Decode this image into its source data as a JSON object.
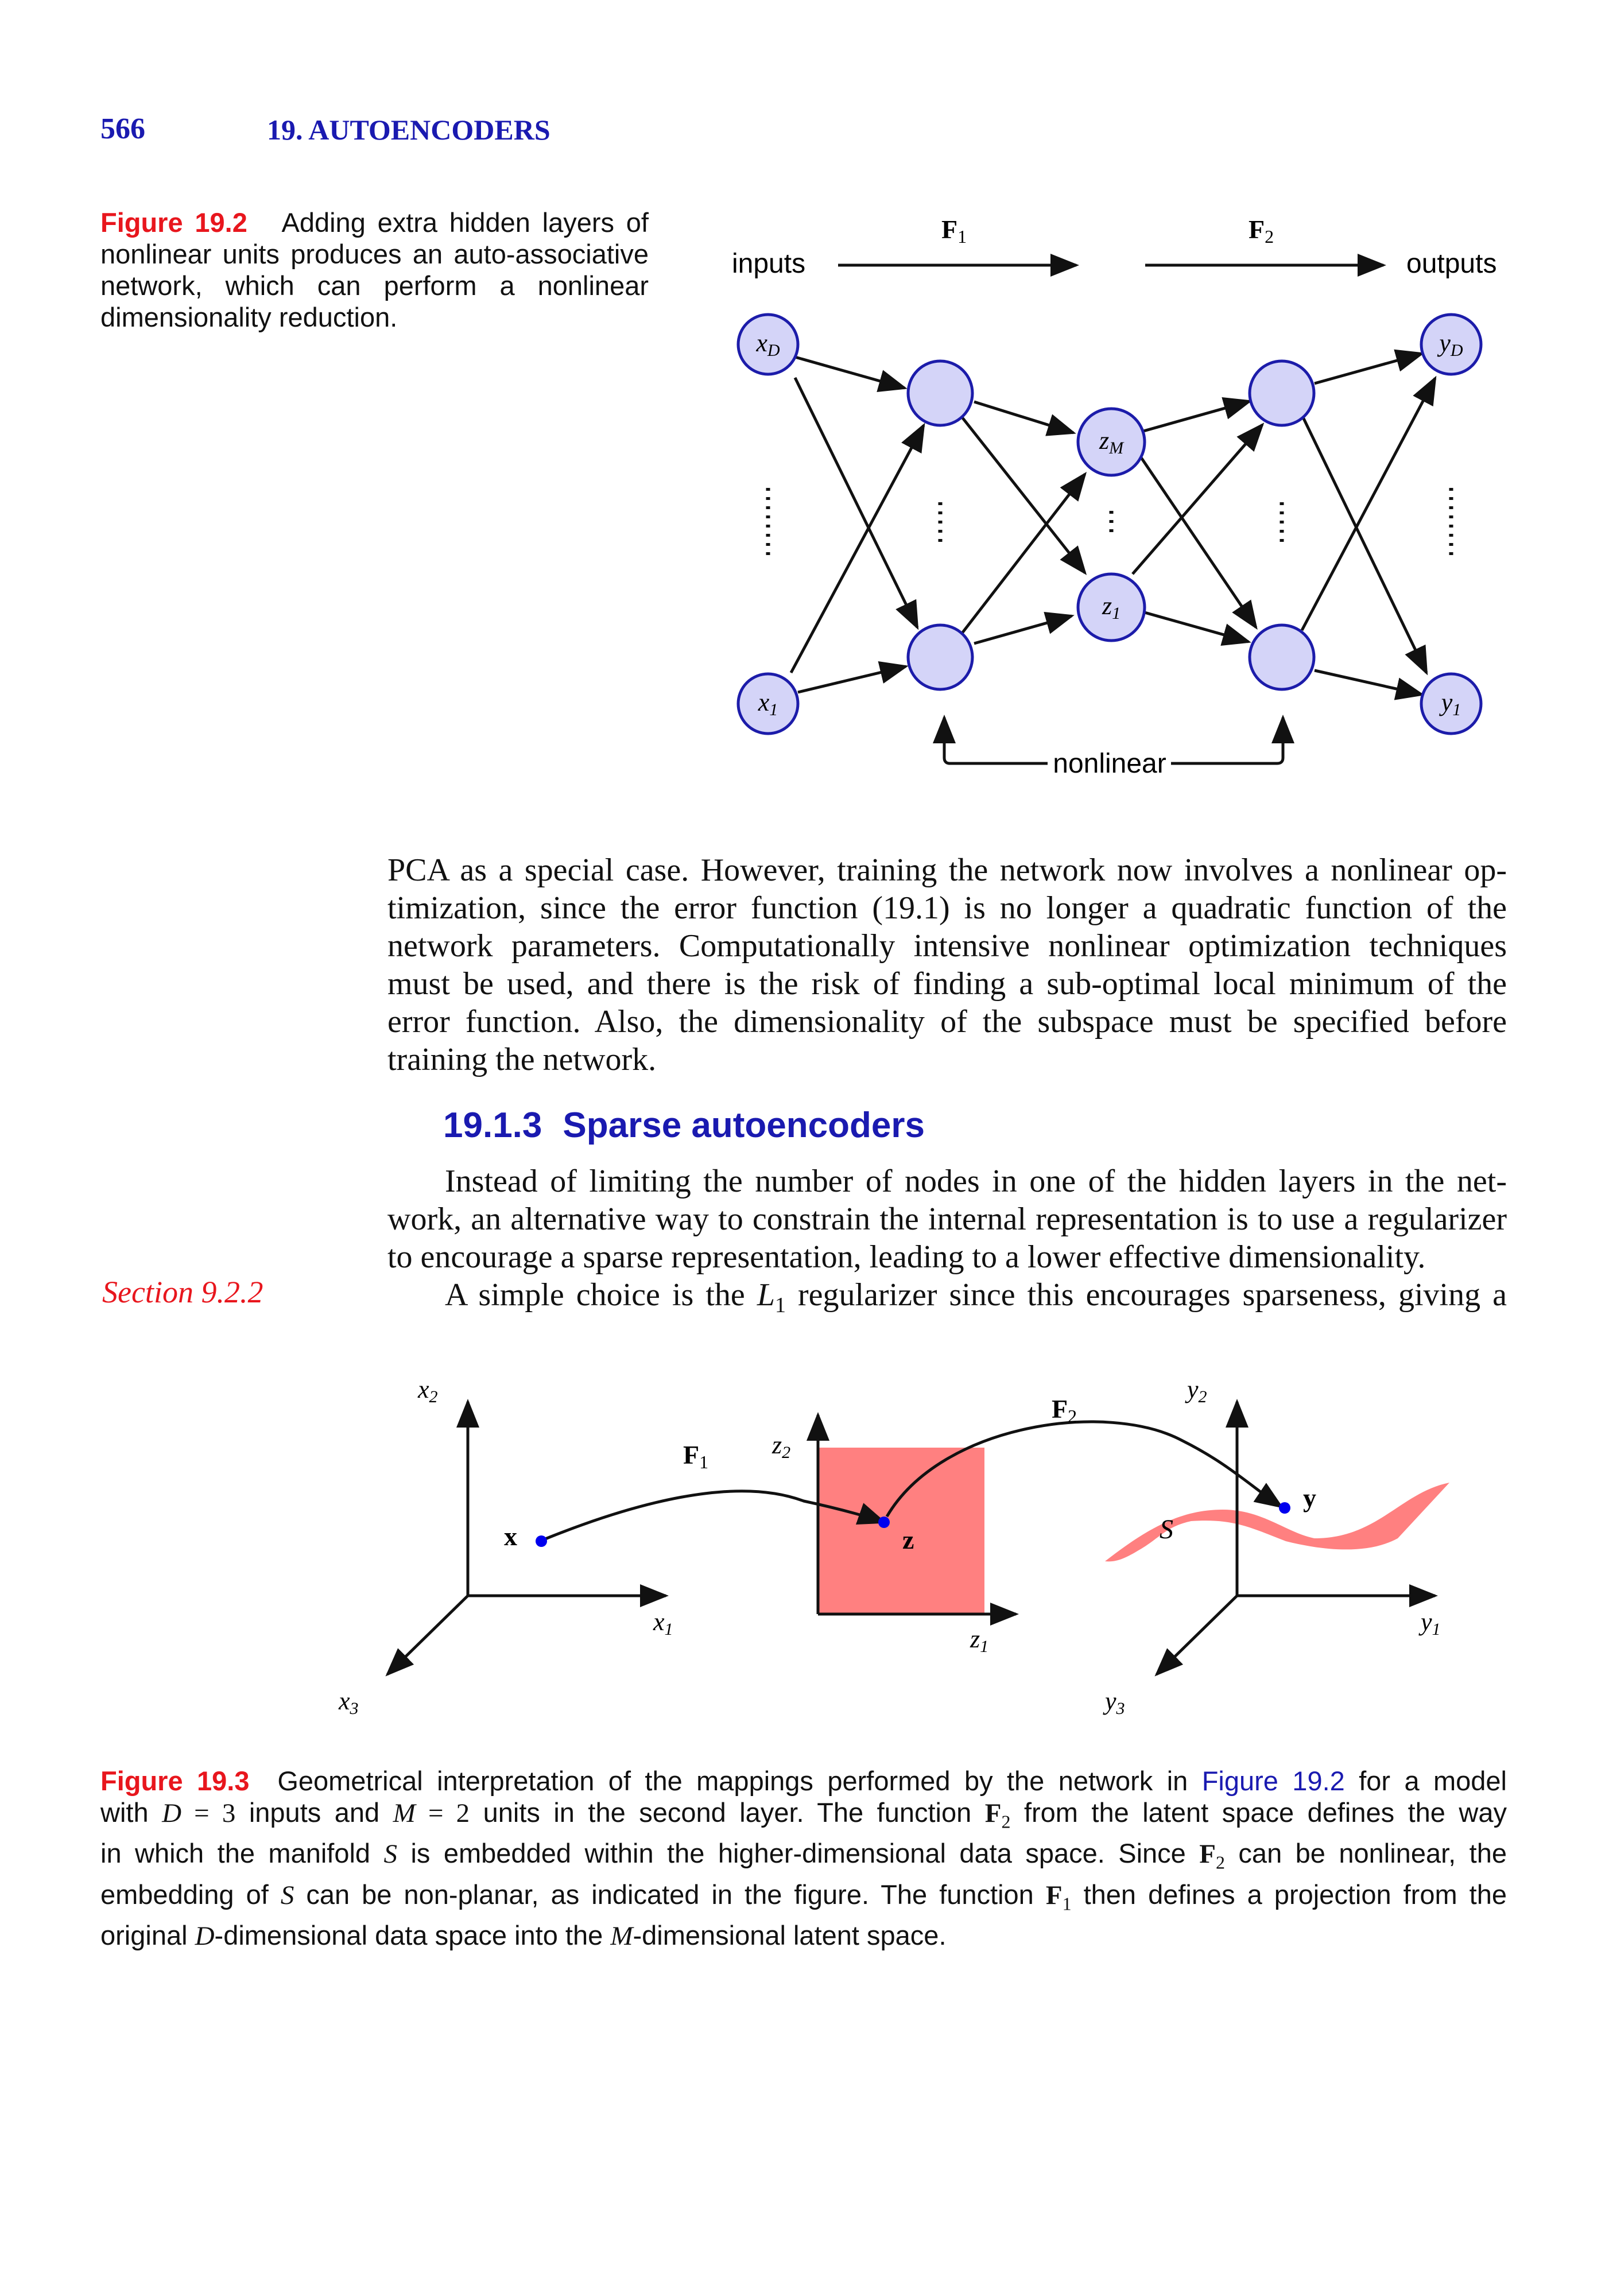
{
  "header": {
    "page_number": "566",
    "chapter_title": "19. AUTOENCODERS"
  },
  "figure_19_2": {
    "label": "Figure 19.2",
    "caption": "Adding extra hidden layers of nonlinear units produces an auto-associative network, which can perform a nonlinear dimensionality reduction.",
    "inputs_label": "inputs",
    "outputs_label": "outputs",
    "f1_label": "F",
    "f1_sub": "1",
    "f2_label": "F",
    "f2_sub": "2",
    "nonlinear_label": "nonlinear",
    "nodes": {
      "xD": "x",
      "xD_sub": "D",
      "x1": "x",
      "x1_sub": "1",
      "zM": "z",
      "zM_sub": "M",
      "z1": "z",
      "z1_sub": "1",
      "yD": "y",
      "yD_sub": "D",
      "y1": "y",
      "y1_sub": "1"
    },
    "colors": {
      "node_fill": "#d4d4f8",
      "node_stroke": "#1c1caa"
    }
  },
  "body": {
    "para1_l1": "PCA as a special case. However, training the network now involves a nonlinear op-",
    "para1_l2": "timization, since the error function (19.1) is no longer a quadratic function of the",
    "para1_l3": "network parameters. Computationally intensive nonlinear optimization techniques",
    "para1_l4": "must be used, and there is the risk of finding a sub-optimal local minimum of the",
    "para1_l5": "error function. Also, the dimensionality of the subspace must be specified before",
    "para1_l6": "training the network.",
    "section_number": "19.1.3",
    "section_title": "Sparse autoencoders",
    "para2_l1": "Instead of limiting the number of nodes in one of the hidden layers in the net-",
    "para2_l2": "work, an alternative way to constrain the internal representation is to use a regularizer",
    "para2_l3": "to encourage a sparse representation, leading to a lower effective dimensionality.",
    "para3_a": "A simple choice is the ",
    "para3_L": "L",
    "para3_sub": "1",
    "para3_b": " regularizer since this encourages sparseness, giving a",
    "sidenote": "Section 9.2.2"
  },
  "figure_19_3": {
    "label": "Figure 19.3",
    "axes": {
      "x1": "x",
      "x1_sub": "1",
      "x2": "x",
      "x2_sub": "2",
      "x3": "x",
      "x3_sub": "3",
      "z1": "z",
      "z1_sub": "1",
      "z2": "z",
      "z2_sub": "2",
      "y1": "y",
      "y1_sub": "1",
      "y2": "y",
      "y2_sub": "2",
      "y3": "y",
      "y3_sub": "3"
    },
    "point_x": "x",
    "point_z": "z",
    "point_y": "y",
    "manifold_label": "S",
    "f1": "F",
    "f1_sub": "1",
    "f2": "F",
    "f2_sub": "2",
    "caption_l1_a": "Geometrical interpretation of the mappings performed by the network in ",
    "caption_l1_link": "Figure 19.2",
    "caption_l1_b": " for a model",
    "caption_l2_a": "with ",
    "caption_l2_D": "D",
    "caption_l2_eq1": " = 3",
    "caption_l2_b": " inputs and ",
    "caption_l2_M": "M",
    "caption_l2_eq2": " = 2",
    "caption_l2_c": " units in the second layer. The function ",
    "caption_l2_F": "F",
    "caption_l2_Fsub": "2",
    "caption_l2_d": " from the latent space defines the way",
    "caption_l3_a": "in which the manifold ",
    "caption_l3_S": "S",
    "caption_l3_b": " is embedded within the higher-dimensional data space. Since ",
    "caption_l3_F": "F",
    "caption_l3_Fsub": "2",
    "caption_l3_c": " can be nonlinear, the",
    "caption_l4_a": "embedding of ",
    "caption_l4_S": "S",
    "caption_l4_b": " can be non-planar, as indicated in the figure. The function ",
    "caption_l4_F": "F",
    "caption_l4_Fsub": "1",
    "caption_l4_c": " then defines a projection from the",
    "caption_l5_a": "original ",
    "caption_l5_D": "D",
    "caption_l5_b": "-dimensional data space into the ",
    "caption_l5_M": "M",
    "caption_l5_c": "-dimensional latent space.",
    "colors": {
      "region": "#ff8080",
      "point": "#0000ee"
    }
  }
}
